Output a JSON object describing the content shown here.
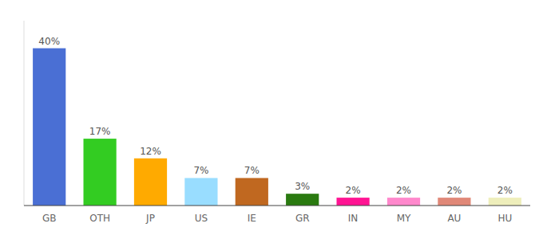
{
  "chart_data": {
    "type": "bar",
    "categories": [
      "GB",
      "OTH",
      "JP",
      "US",
      "IE",
      "GR",
      "IN",
      "MY",
      "AU",
      "HU"
    ],
    "values": [
      40,
      17,
      12,
      7,
      7,
      3,
      2,
      2,
      2,
      2
    ],
    "value_labels": [
      "40%",
      "17%",
      "12%",
      "7%",
      "7%",
      "3%",
      "2%",
      "2%",
      "2%",
      "2%"
    ],
    "colors": [
      "#4a6fd4",
      "#33cc22",
      "#ffaa00",
      "#99ddff",
      "#c06820",
      "#2a7a10",
      "#ff1493",
      "#ff88cc",
      "#e08878",
      "#eeeebb"
    ],
    "ylim": [
      0,
      47
    ],
    "data_labels": true,
    "tick_labels": "x",
    "grid": false
  }
}
